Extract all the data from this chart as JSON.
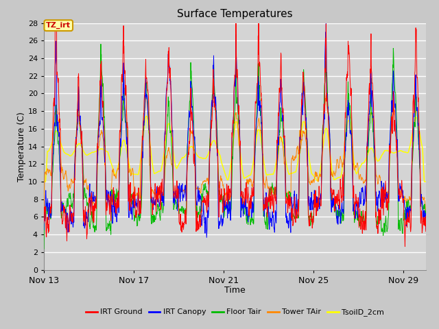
{
  "title": "Surface Temperatures",
  "xlabel": "Time",
  "ylabel": "Temperature (C)",
  "ylim": [
    0,
    28
  ],
  "yticks": [
    0,
    2,
    4,
    6,
    8,
    10,
    12,
    14,
    16,
    18,
    20,
    22,
    24,
    26,
    28
  ],
  "x_tick_labels": [
    "Nov 13",
    "Nov 17",
    "Nov 21",
    "Nov 25",
    "Nov 29"
  ],
  "x_tick_positions": [
    0,
    4,
    8,
    12,
    16
  ],
  "bg_color": "#cccccc",
  "plot_bg_color": "#d9d9d9",
  "line_colors": {
    "IRT Ground": "#ff0000",
    "IRT Canopy": "#0000ff",
    "Floor Tair": "#00bb00",
    "Tower TAir": "#ff8800",
    "TsoilD_2cm": "#ffff00"
  },
  "legend_entries": [
    "IRT Ground",
    "IRT Canopy",
    "Floor Tair",
    "Tower TAir",
    "TsoilD_2cm"
  ],
  "annotation_text": "TZ_irt",
  "n_days": 17,
  "points_per_day": 96
}
